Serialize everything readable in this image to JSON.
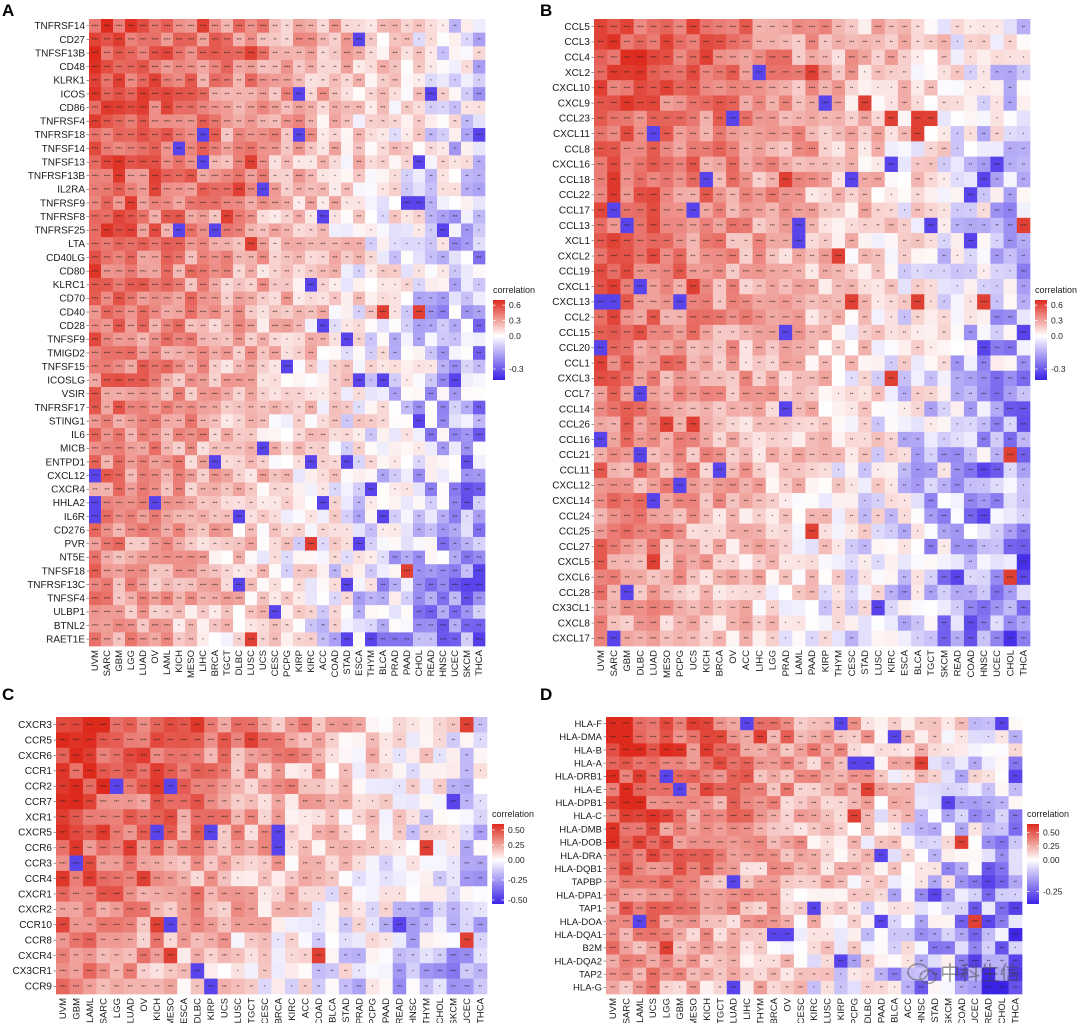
{
  "figure": {
    "watermark": "中科生信"
  },
  "chart_data": [
    {
      "panel": "A",
      "type": "heatmap",
      "legend_title": "correlation",
      "colorbar_ticks": [
        0.6,
        0.3,
        0.0,
        -0.3
      ],
      "colorbar_tick_labels": [
        "0.6",
        "0.3",
        "0.0",
        "-0.3"
      ],
      "value_range": [
        -0.4,
        0.7
      ],
      "rows": [
        "TNFRSF14",
        "CD27",
        "TNFSF13B",
        "CD48",
        "KLRK1",
        "ICOS",
        "CD86",
        "TNFRSF4",
        "TNFRSF18",
        "TNFSF14",
        "TNFSF13",
        "TNFRSF13B",
        "IL2RA",
        "TNFRSF9",
        "TNFRSF8",
        "TNFRSF25",
        "LTA",
        "CD40LG",
        "CD80",
        "KLRC1",
        "CD70",
        "CD40",
        "CD28",
        "TNFSF9",
        "TMIGD2",
        "TNFSF15",
        "ICOSLG",
        "VSIR",
        "TNFRSF17",
        "STING1",
        "IL6",
        "MICB",
        "ENTPD1",
        "CXCL12",
        "CXCR4",
        "HHLA2",
        "IL6R",
        "CD276",
        "PVR",
        "NT5E",
        "TNFSF18",
        "TNFRSF13C",
        "TNFSF4",
        "ULBP1",
        "BTNL2",
        "RAET1E"
      ],
      "columns": [
        "UVM",
        "SARC",
        "GBM",
        "LGG",
        "LUAD",
        "OV",
        "LAML",
        "KICH",
        "MESO",
        "LIHC",
        "BRCA",
        "TGCT",
        "DLBC",
        "LUSC",
        "UCS",
        "CESC",
        "PCPG",
        "KIRP",
        "KIRC",
        "ACC",
        "COAD",
        "STAD",
        "ESCA",
        "THYM",
        "BLCA",
        "PRAD",
        "PAAD",
        "CHOL",
        "READ",
        "HNSC",
        "UCEC",
        "SKCM",
        "THCA"
      ]
    },
    {
      "panel": "B",
      "type": "heatmap",
      "legend_title": "correlation",
      "colorbar_ticks": [
        0.6,
        0.3,
        0.0,
        -0.3
      ],
      "colorbar_tick_labels": [
        "0.6",
        "0.3",
        "0.0",
        "-0.3"
      ],
      "value_range": [
        -0.4,
        0.7
      ],
      "rows": [
        "CCL5",
        "CCL3",
        "CCL4",
        "XCL2",
        "CXCL10",
        "CXCL9",
        "CCL23",
        "CXCL11",
        "CCL8",
        "CXCL16",
        "CCL18",
        "CCL22",
        "CCL17",
        "CCL13",
        "XCL1",
        "CXCL2",
        "CCL19",
        "CXCL1",
        "CXCL13",
        "CCL2",
        "CCL15",
        "CCL20",
        "CCL1",
        "CXCL3",
        "CCL7",
        "CCL14",
        "CCL26",
        "CCL16",
        "CCL21",
        "CCL11",
        "CXCL12",
        "CXCL14",
        "CCL24",
        "CCL25",
        "CCL27",
        "CXCL5",
        "CXCL6",
        "CCL28",
        "CX3CL1",
        "CXCL8",
        "CXCL17"
      ],
      "columns": [
        "UVM",
        "SARC",
        "GBM",
        "DLBC",
        "LUAD",
        "MESO",
        "PCPG",
        "UCS",
        "KICH",
        "BRCA",
        "OV",
        "ACC",
        "LIHC",
        "LGG",
        "PRAD",
        "LAML",
        "PAAD",
        "KIRP",
        "THYM",
        "CESC",
        "STAD",
        "LUSC",
        "KIRC",
        "ESCA",
        "BLCA",
        "TGCT",
        "SKCM",
        "READ",
        "COAD",
        "HNSC",
        "UCEC",
        "CHOL",
        "THCA"
      ]
    },
    {
      "panel": "C",
      "type": "heatmap",
      "legend_title": "correlation",
      "colorbar_ticks": [
        0.5,
        0.25,
        0.0,
        -0.25,
        -0.5
      ],
      "colorbar_tick_labels": [
        "0.50",
        "0.25",
        "0.00",
        "-0.25",
        "-0.50"
      ],
      "value_range": [
        -0.55,
        0.6
      ],
      "rows": [
        "CXCR3",
        "CCR5",
        "CXCR6",
        "CCR1",
        "CCR2",
        "CCR7",
        "XCR1",
        "CXCR5",
        "CCR6",
        "CCR3",
        "CCR4",
        "CXCR1",
        "CXCR2",
        "CCR10",
        "CCR8",
        "CXCR4",
        "CX3CR1",
        "CCR9"
      ],
      "columns": [
        "UVM",
        "GBM",
        "LAML",
        "SARC",
        "LGG",
        "LUAD",
        "OV",
        "KICH",
        "MESO",
        "ESCA",
        "DLBC",
        "KIRP",
        "UCS",
        "LUSC",
        "TGCT",
        "CESC",
        "BRCA",
        "KIRC",
        "ACC",
        "COAD",
        "BLCA",
        "STAD",
        "PRAD",
        "PCPG",
        "PAAD",
        "READ",
        "HNSC",
        "THYM",
        "CHOL",
        "SKCM",
        "UCEC",
        "THCA"
      ]
    },
    {
      "panel": "D",
      "type": "heatmap",
      "legend_title": "correlation",
      "colorbar_ticks": [
        0.5,
        0.25,
        0.0,
        -0.25
      ],
      "colorbar_tick_labels": [
        "0.50",
        "0.25",
        "0.00",
        "-0.25"
      ],
      "value_range": [
        -0.35,
        0.65
      ],
      "rows": [
        "HLA-F",
        "HLA-DMA",
        "HLA-B",
        "HLA-A",
        "HLA-DRB1",
        "HLA-E",
        "HLA-DPB1",
        "HLA-C",
        "HLA-DMB",
        "HLA-DOB",
        "HLA-DRA",
        "HLA-DQB1",
        "TAPBP",
        "HLA-DPA1",
        "TAP1",
        "HLA-DOA",
        "HLA-DQA1",
        "B2M",
        "HLA-DQA2",
        "TAP2",
        "HLA-G"
      ],
      "columns": [
        "UVM",
        "SARC",
        "LAML",
        "UCS",
        "LGG",
        "GBM",
        "MESO",
        "KICH",
        "TGCT",
        "LUAD",
        "LIHC",
        "THYM",
        "BRCA",
        "OV",
        "CESC",
        "KIRC",
        "LUSC",
        "KIRP",
        "PCPG",
        "DLBC",
        "PAAD",
        "BLCA",
        "ACC",
        "HNSC",
        "STAD",
        "SKCM",
        "COAD",
        "UCEC",
        "READ",
        "CHOL",
        "THCA"
      ]
    }
  ]
}
